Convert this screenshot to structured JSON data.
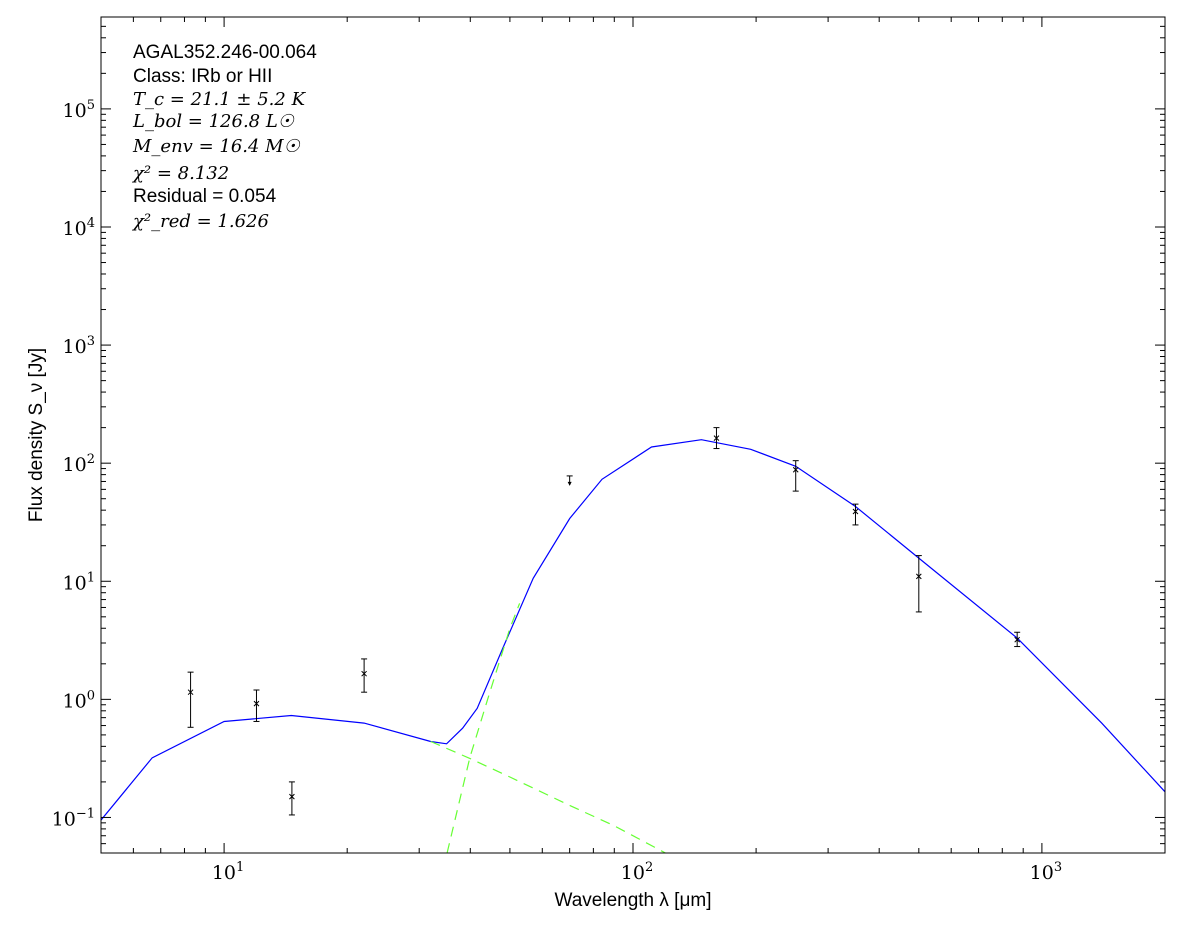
{
  "chart_data": {
    "type": "scatter",
    "title": "",
    "xlabel": "Wavelength λ [μm]",
    "ylabel": "Flux density S_ν [Jy]",
    "xscale": "log",
    "yscale": "log",
    "xlim": [
      5,
      2000
    ],
    "ylim": [
      0.05,
      600000
    ],
    "grid": false,
    "x_ticks": [
      10,
      100,
      1000
    ],
    "y_ticks": [
      0.1,
      1,
      10,
      100,
      1000,
      10000,
      100000
    ],
    "annotations": [
      {
        "text": "AGAL352.246-00.064",
        "style": "sans"
      },
      {
        "text": "Class: IRb or HII",
        "style": "sans"
      },
      {
        "text": "T_c = 21.1 ± 5.2 K",
        "style": "math"
      },
      {
        "text": "L_bol = 126.8 L☉",
        "style": "math"
      },
      {
        "text": "M_env = 16.4 M☉",
        "style": "math"
      },
      {
        "text": "χ² = 8.132",
        "style": "math"
      },
      {
        "text": "Residual = 0.054",
        "style": "sans"
      },
      {
        "text": "χ²_red = 1.626",
        "style": "math"
      }
    ],
    "points": [
      {
        "x": 8.28,
        "y": 1.15,
        "ylo": 0.58,
        "yhi": 1.7
      },
      {
        "x": 12,
        "y": 0.92,
        "ylo": 0.65,
        "yhi": 1.2
      },
      {
        "x": 14.65,
        "y": 0.15,
        "ylo": 0.105,
        "yhi": 0.2
      },
      {
        "x": 22,
        "y": 1.65,
        "ylo": 1.15,
        "yhi": 2.2
      },
      {
        "x": 160,
        "y": 163,
        "ylo": 133,
        "yhi": 200
      },
      {
        "x": 250,
        "y": 88,
        "ylo": 58,
        "yhi": 105
      },
      {
        "x": 350,
        "y": 39,
        "ylo": 30,
        "yhi": 45
      },
      {
        "x": 500,
        "y": 11,
        "ylo": 5.5,
        "yhi": 16.5
      },
      {
        "x": 870,
        "y": 3.2,
        "ylo": 2.8,
        "yhi": 3.7
      }
    ],
    "upper_limits": [
      {
        "x": 70,
        "y": 78
      }
    ],
    "series": [
      {
        "style": "solid",
        "color": "#0000ff",
        "x": [
          5,
          6.67,
          10,
          14.6,
          22,
          32,
          35,
          38.3,
          41.6,
          48,
          57,
          70,
          84,
          111,
          147,
          194,
          250,
          350,
          500,
          870,
          1400,
          2000
        ],
        "y": [
          0.095,
          0.32,
          0.65,
          0.73,
          0.63,
          0.44,
          0.42,
          0.57,
          0.84,
          2.7,
          10.6,
          34,
          73,
          137,
          158,
          131,
          94,
          43,
          15.7,
          3.3,
          0.63,
          0.165
        ]
      },
      {
        "style": "dashed",
        "color": "#66ff33",
        "x": [
          32,
          39.9,
          50,
          69.8,
          90,
          120
        ],
        "y": [
          0.44,
          0.316,
          0.22,
          0.127,
          0.085,
          0.05
        ]
      },
      {
        "style": "dashed",
        "color": "#66ff33",
        "x": [
          35.1,
          39.9,
          44.1,
          50,
          52.8
        ],
        "y": [
          0.05,
          0.32,
          1.0,
          4.0,
          6.5
        ]
      }
    ]
  }
}
